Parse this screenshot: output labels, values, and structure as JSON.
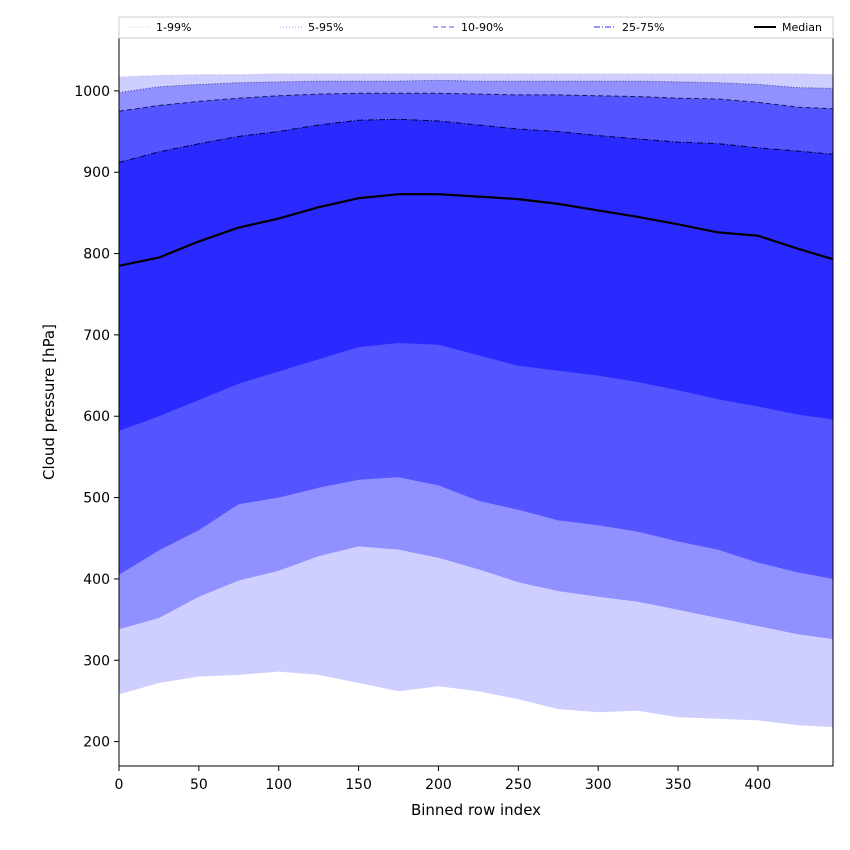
{
  "chart_data": {
    "type": "area",
    "title": "",
    "xlabel": "Binned row index",
    "ylabel": "Cloud pressure [hPa]",
    "xlim": [
      0,
      447
    ],
    "ylim": [
      170,
      1065
    ],
    "xticks": [
      0,
      50,
      100,
      150,
      200,
      250,
      300,
      350,
      400
    ],
    "yticks": [
      200,
      300,
      400,
      500,
      600,
      700,
      800,
      900,
      1000
    ],
    "grid": false,
    "legend_position": "top",
    "x": [
      0,
      25,
      50,
      75,
      100,
      125,
      150,
      175,
      200,
      225,
      250,
      275,
      300,
      325,
      350,
      375,
      400,
      425,
      447
    ],
    "bands": [
      {
        "name": "1-99%",
        "color": "#cfcfff",
        "line_color": "#b8b8e0",
        "line_style": "dotted",
        "lower": [
          258,
          272,
          280,
          282,
          286,
          282,
          272,
          262,
          268,
          262,
          252,
          240,
          236,
          238,
          230,
          228,
          226,
          220,
          218
        ],
        "upper": [
          1017,
          1019,
          1020,
          1020,
          1021,
          1021,
          1021,
          1021,
          1021,
          1021,
          1021,
          1021,
          1021,
          1021,
          1021,
          1021,
          1021,
          1021,
          1020
        ]
      },
      {
        "name": "5-95%",
        "color": "#9090ff",
        "line_color": "#3a3a80",
        "line_style": "dotted",
        "lower": [
          338,
          352,
          378,
          398,
          410,
          428,
          440,
          436,
          426,
          412,
          396,
          385,
          378,
          372,
          362,
          352,
          342,
          332,
          326
        ],
        "upper": [
          998,
          1005,
          1008,
          1010,
          1011,
          1012,
          1012,
          1012,
          1013,
          1012,
          1012,
          1012,
          1012,
          1012,
          1011,
          1010,
          1008,
          1004,
          1003
        ]
      },
      {
        "name": "10-90%",
        "color": "#5555ff",
        "line_color": "#1a1a60",
        "line_style": "dashed",
        "lower": [
          405,
          435,
          460,
          492,
          500,
          512,
          522,
          525,
          515,
          496,
          485,
          472,
          466,
          458,
          446,
          436,
          420,
          408,
          400
        ],
        "upper": [
          975,
          982,
          987,
          991,
          994,
          996,
          997,
          997,
          997,
          996,
          995,
          995,
          994,
          993,
          991,
          990,
          986,
          980,
          978
        ]
      },
      {
        "name": "25-75%",
        "color": "#2a2aff",
        "line_color": "#000040",
        "line_style": "dashdot",
        "lower": [
          582,
          600,
          620,
          640,
          655,
          670,
          685,
          690,
          688,
          675,
          662,
          656,
          650,
          642,
          632,
          621,
          612,
          602,
          596
        ],
        "upper": [
          912,
          925,
          935,
          944,
          950,
          958,
          964,
          965,
          963,
          958,
          953,
          950,
          945,
          941,
          937,
          935,
          930,
          926,
          922
        ]
      }
    ],
    "series": [
      {
        "name": "Median",
        "color": "#000000",
        "values": [
          785,
          795,
          815,
          832,
          843,
          857,
          868,
          873,
          873,
          870,
          867,
          861,
          853,
          845,
          836,
          826,
          822,
          806,
          793
        ]
      }
    ],
    "legend": [
      "1-99%",
      "5-95%",
      "10-90%",
      "25-75%",
      "Median"
    ]
  }
}
